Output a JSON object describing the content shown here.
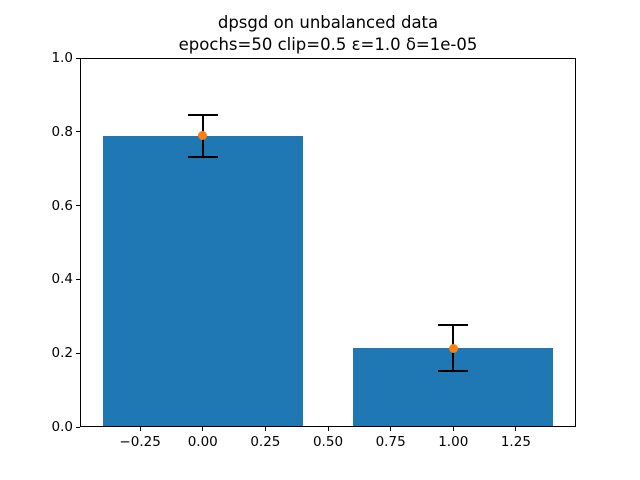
{
  "figure": {
    "background": "#ffffff"
  },
  "chart_data": {
    "type": "bar",
    "title": "dpsgd on unbalanced data",
    "subtitle": "epochs=50 clip=0.5 ε=1.0 δ=1e-05",
    "x": [
      0,
      1
    ],
    "values": [
      0.789,
      0.214
    ],
    "errors": [
      0.057,
      0.062
    ],
    "bar_width": 0.8,
    "bar_color": "#1f77b4",
    "marker_color": "#ff7f0e",
    "errorbar_color": "#000000",
    "marker_shape": "circle",
    "xlim": [
      -0.49,
      1.49
    ],
    "ylim": [
      0.0,
      1.0
    ],
    "x_ticks": [
      -0.25,
      0.0,
      0.25,
      0.5,
      0.75,
      1.0,
      1.25
    ],
    "x_tick_labels": [
      "−0.25",
      "0.00",
      "0.25",
      "0.50",
      "0.75",
      "1.00",
      "1.25"
    ],
    "y_ticks": [
      0.0,
      0.2,
      0.4,
      0.6,
      0.8,
      1.0
    ],
    "y_tick_labels": [
      "0.0",
      "0.2",
      "0.4",
      "0.6",
      "0.8",
      "1.0"
    ],
    "xlabel": "",
    "ylabel": "",
    "grid": false,
    "legend": null
  }
}
